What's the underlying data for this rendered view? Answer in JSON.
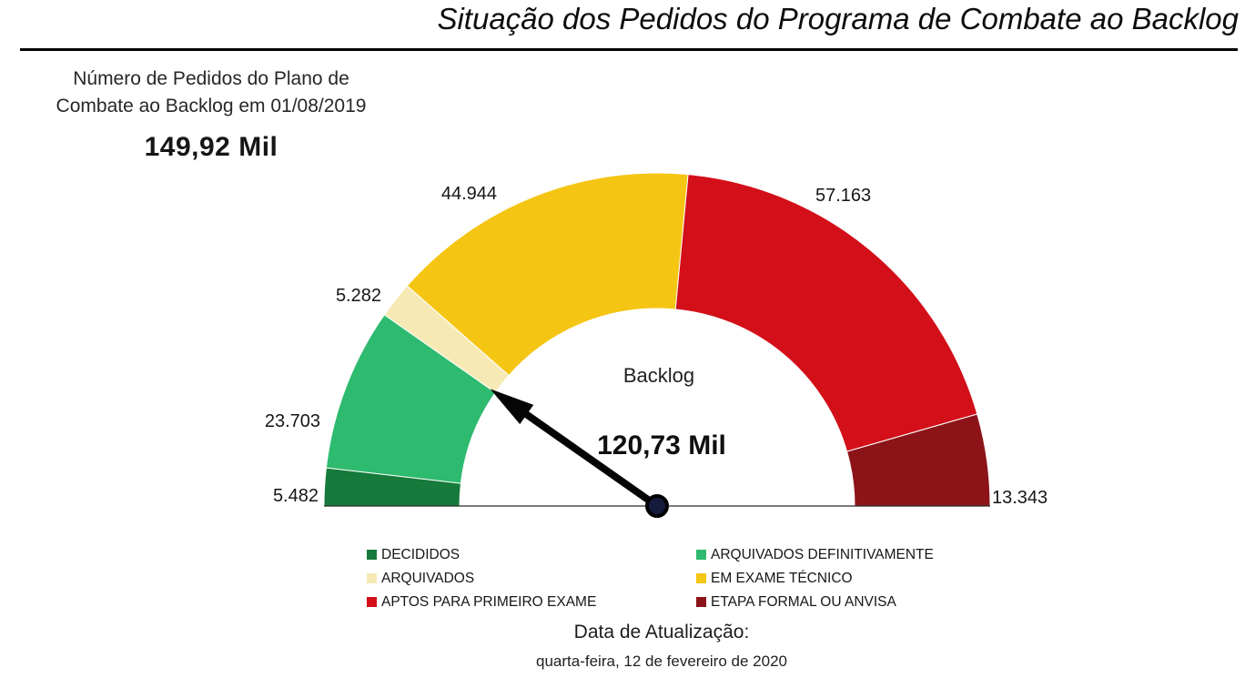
{
  "header": {
    "title": "Situação dos Pedidos do Programa de Combate ao Backlog"
  },
  "summary": {
    "title_line1": "Número de Pedidos do Plano de",
    "title_line2": "Combate ao Backlog em 01/08/2019",
    "value": "149,92 Mil"
  },
  "footer": {
    "label": "Data de Atualização:",
    "date": "quarta-feira, 12 de fevereiro de 2020"
  },
  "chart_data": {
    "type": "pie",
    "variant": "half-donut-gauge",
    "start_angle_deg": 180,
    "end_angle_deg": 0,
    "legend_position": "bottom",
    "center_label": "Backlog",
    "needle_value": 120732,
    "needle_display": "120,73 Mil",
    "total": 149917,
    "total_display": "149,92 Mil",
    "segments": [
      {
        "label": "DECIDIDOS",
        "value": 5482,
        "display": "5.482",
        "color": "#157a3b"
      },
      {
        "label": "ARQUIVADOS DEFINITIVAMENTE",
        "value": 23703,
        "display": "23.703",
        "color": "#2eba6f"
      },
      {
        "label": "ARQUIVADOS",
        "value": 5282,
        "display": "5.282",
        "color": "#f6e9b4"
      },
      {
        "label": "EM EXAME TÉCNICO",
        "value": 44944,
        "display": "44.944",
        "color": "#f5c513"
      },
      {
        "label": "APTOS PARA PRIMEIRO EXAME",
        "value": 57163,
        "display": "57.163",
        "color": "#d30f19"
      },
      {
        "label": "ETAPA FORMAL OU ANVISA",
        "value": 13343,
        "display": "13.343",
        "color": "#8c1418"
      }
    ]
  }
}
